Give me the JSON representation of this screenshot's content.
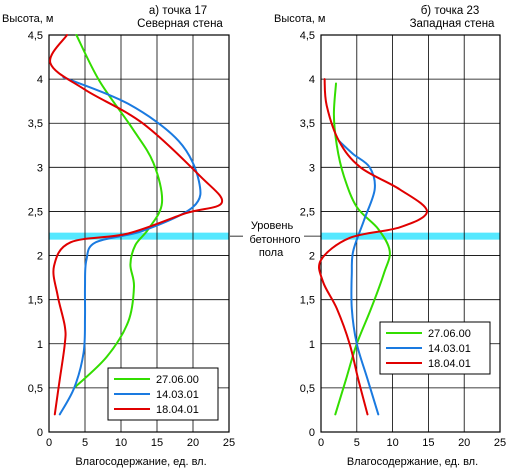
{
  "chart_data": [
    {
      "type": "line",
      "title": "а) точка 17",
      "subtitle": "Северная стена",
      "xlabel": "Влагосодержание, ед. вл.",
      "ylabel": "Высота, м",
      "xlim": [
        0,
        25
      ],
      "ylim": [
        0,
        4.5
      ],
      "xticks": [
        "0",
        "5",
        "10",
        "15",
        "20",
        "25"
      ],
      "yticks": [
        "0",
        "0,5",
        "1",
        "1,5",
        "2",
        "2,5",
        "3",
        "3,5",
        "4",
        "4,5"
      ],
      "grid": true,
      "legend": "bottom-right",
      "series": [
        {
          "name": "27.06.00",
          "color": "#33dd00",
          "points": [
            [
              3.5,
              0.5
            ],
            [
              8,
              0.85
            ],
            [
              11,
              1.25
            ],
            [
              11.8,
              1.65
            ],
            [
              11.3,
              1.9
            ],
            [
              12,
              2.12
            ],
            [
              13.8,
              2.3
            ],
            [
              15.7,
              2.6
            ],
            [
              14.5,
              3.05
            ],
            [
              11.5,
              3.45
            ],
            [
              7,
              3.98
            ],
            [
              3.8,
              4.5
            ]
          ]
        },
        {
          "name": "14.03.01",
          "color": "#1a7ae0",
          "points": [
            [
              1.5,
              0.2
            ],
            [
              3.5,
              0.5
            ],
            [
              4.8,
              0.9
            ],
            [
              5,
              1.3
            ],
            [
              5,
              1.65
            ],
            [
              5.2,
              1.95
            ],
            [
              6.5,
              2.15
            ],
            [
              13,
              2.28
            ],
            [
              20,
              2.55
            ],
            [
              20.8,
              2.85
            ],
            [
              18,
              3.3
            ],
            [
              11,
              3.72
            ],
            [
              2,
              4.02
            ]
          ]
        },
        {
          "name": "18.04.01",
          "color": "#e00000",
          "points": [
            [
              0.8,
              0.2
            ],
            [
              1.5,
              0.6
            ],
            [
              2.2,
              1.0
            ],
            [
              2.2,
              1.2
            ],
            [
              1.2,
              1.55
            ],
            [
              0.7,
              1.88
            ],
            [
              3,
              2.15
            ],
            [
              11,
              2.25
            ],
            [
              19,
              2.48
            ],
            [
              24,
              2.6
            ],
            [
              21,
              2.9
            ],
            [
              13,
              3.5
            ],
            [
              5,
              3.88
            ],
            [
              0.2,
              4.18
            ],
            [
              2.5,
              4.5
            ]
          ]
        }
      ]
    },
    {
      "type": "line",
      "title": "б) точка 23",
      "subtitle": "Западная стена",
      "xlabel": "Влагосодержание, ед. вл.",
      "ylabel": "Высота, м",
      "xlim": [
        0,
        25
      ],
      "ylim": [
        0,
        4.5
      ],
      "xticks": [
        "0",
        "5",
        "10",
        "15",
        "20",
        "25"
      ],
      "yticks": [
        "0",
        "0,5",
        "1",
        "1,5",
        "2",
        "2,5",
        "3",
        "3,5",
        "4",
        "4,5"
      ],
      "grid": true,
      "legend": "center-right",
      "series": [
        {
          "name": "27.06.00",
          "color": "#33dd00",
          "points": [
            [
              2,
              0.2
            ],
            [
              3.5,
              0.6
            ],
            [
              5,
              1.0
            ],
            [
              7,
              1.4
            ],
            [
              8.8,
              1.8
            ],
            [
              9.6,
              2.05
            ],
            [
              8,
              2.3
            ],
            [
              5,
              2.55
            ],
            [
              3.2,
              2.9
            ],
            [
              2.2,
              3.25
            ],
            [
              1.8,
              3.6
            ],
            [
              2.1,
              3.95
            ]
          ]
        },
        {
          "name": "14.03.01",
          "color": "#1a7ae0",
          "points": [
            [
              8,
              0.2
            ],
            [
              6.5,
              0.6
            ],
            [
              5,
              1.0
            ],
            [
              4.3,
              1.4
            ],
            [
              4.3,
              1.8
            ],
            [
              4.5,
              2.05
            ],
            [
              6,
              2.4
            ],
            [
              7.5,
              2.75
            ],
            [
              6.8,
              3.0
            ],
            [
              4.5,
              3.15
            ],
            [
              2.5,
              3.3
            ]
          ]
        },
        {
          "name": "18.04.01",
          "color": "#e00000",
          "points": [
            [
              6.5,
              0.2
            ],
            [
              5.2,
              0.6
            ],
            [
              4,
              1.0
            ],
            [
              2.2,
              1.4
            ],
            [
              0.3,
              1.7
            ],
            [
              0,
              1.95
            ],
            [
              4,
              2.2
            ],
            [
              11,
              2.32
            ],
            [
              14.8,
              2.5
            ],
            [
              11,
              2.75
            ],
            [
              5.5,
              3.0
            ],
            [
              2.5,
              3.3
            ],
            [
              0.8,
              3.7
            ],
            [
              0.5,
              4.0
            ]
          ]
        }
      ]
    }
  ],
  "annotation": {
    "lines": [
      "Уровень",
      "бетонного",
      "пола"
    ],
    "band_height_m": 2.22,
    "band_color": "#55e8ff"
  }
}
